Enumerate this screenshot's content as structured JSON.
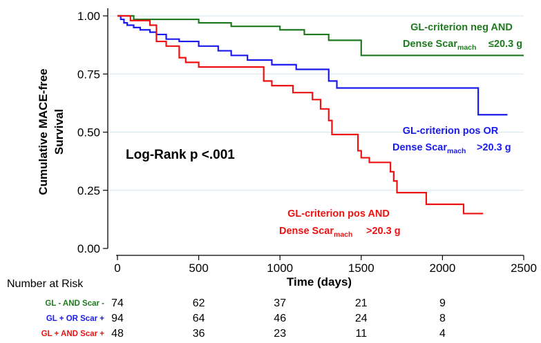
{
  "chart_data": {
    "type": "line",
    "title": "",
    "xlabel": "Time (days)",
    "ylabel_line1": "Cumulative MACE-free",
    "ylabel_line2": "Survival",
    "xlim": [
      0,
      2500
    ],
    "ylim": [
      0,
      1
    ],
    "x_ticks": [
      0,
      500,
      1000,
      1500,
      2000,
      2500
    ],
    "y_ticks": [
      0.0,
      0.25,
      0.5,
      0.75,
      1.0
    ],
    "x_tick_labels": [
      "0",
      "500",
      "1000",
      "1500",
      "2000",
      "2500"
    ],
    "y_tick_labels": [
      "0.00",
      "0.25",
      "0.50",
      "0.75",
      "1.00"
    ],
    "grid": "horizontal",
    "step": true,
    "annotation": "Log-Rank p <.001",
    "series": [
      {
        "color": "#1f7a1f",
        "label_line1": "GL-criterion neg AND",
        "label_line2_main": "Dense Scar",
        "label_line2_sub": "mach",
        "label_line2_tail": "≤20.3 g",
        "x": [
          0,
          100,
          500,
          700,
          1000,
          1150,
          1300,
          1500,
          2500
        ],
        "y": [
          1.0,
          0.985,
          0.97,
          0.955,
          0.94,
          0.92,
          0.895,
          0.83,
          0.83
        ]
      },
      {
        "color": "#1a1aee",
        "label_line1": "GL-criterion pos OR",
        "label_line2_main": "Dense Scar",
        "label_line2_sub": "mach",
        "label_line2_tail": ">20.3 g",
        "x": [
          0,
          20,
          40,
          60,
          100,
          140,
          200,
          240,
          300,
          380,
          500,
          620,
          700,
          800,
          950,
          1100,
          1300,
          1350,
          2220,
          2400
        ],
        "y": [
          1.0,
          0.985,
          0.97,
          0.96,
          0.95,
          0.94,
          0.93,
          0.92,
          0.9,
          0.89,
          0.87,
          0.85,
          0.83,
          0.81,
          0.79,
          0.77,
          0.72,
          0.69,
          0.575,
          0.575
        ]
      },
      {
        "color": "#ee1111",
        "label_line1": "GL-criterion pos AND",
        "label_line2_main": "Dense Scar",
        "label_line2_sub": "mach",
        "label_line2_tail": ">20.3 g",
        "x": [
          0,
          80,
          200,
          240,
          300,
          380,
          420,
          500,
          900,
          950,
          1000,
          1080,
          1200,
          1250,
          1300,
          1320,
          1480,
          1500,
          1550,
          1680,
          1700,
          1720,
          1900,
          2130,
          2250
        ],
        "y": [
          1.0,
          0.98,
          0.96,
          0.89,
          0.87,
          0.82,
          0.8,
          0.78,
          0.72,
          0.7,
          0.7,
          0.67,
          0.64,
          0.6,
          0.55,
          0.49,
          0.42,
          0.39,
          0.37,
          0.33,
          0.29,
          0.24,
          0.19,
          0.15,
          0.15
        ]
      }
    ]
  },
  "risk_table": {
    "title": "Number at Risk",
    "times": [
      0,
      500,
      1000,
      1500,
      2000
    ],
    "rows": [
      {
        "label": "GL - AND Scar -",
        "color": "#1f7a1f",
        "counts": [
          "74",
          "62",
          "37",
          "21",
          "9"
        ]
      },
      {
        "label": "GL + OR Scar +",
        "color": "#1a1aee",
        "counts": [
          "94",
          "64",
          "46",
          "24",
          "8"
        ]
      },
      {
        "label": "GL + AND Scar +",
        "color": "#ee1111",
        "counts": [
          "48",
          "36",
          "23",
          "11",
          "4"
        ]
      }
    ]
  }
}
